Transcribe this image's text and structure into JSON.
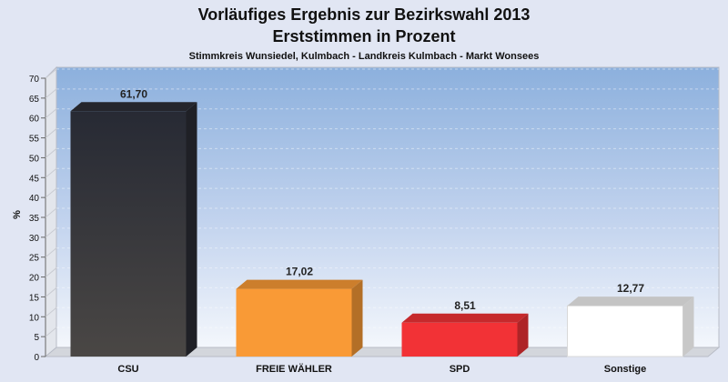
{
  "chart_data": {
    "type": "bar",
    "title": "Vorläufiges Ergebnis zur Bezirkswahl 2013",
    "title_line2": "Erststimmen in Prozent",
    "subtitle": "Stimmkreis Wunsiedel, Kulmbach - Landkreis Kulmbach - Markt Wonsees",
    "ylabel": "%",
    "ylim": [
      0,
      70
    ],
    "yticks": [
      0,
      5,
      10,
      15,
      20,
      25,
      30,
      35,
      40,
      45,
      50,
      55,
      60,
      65,
      70
    ],
    "categories": [
      "CSU",
      "FREIE WÄHLER",
      "SPD",
      "Sonstige"
    ],
    "values": [
      61.7,
      17.02,
      8.51,
      12.77
    ],
    "value_labels": [
      "61,70",
      "17,02",
      "8,51",
      "12,77"
    ],
    "colors": [
      "#2b2d35",
      "#f99a36",
      "#f23236",
      "#ffffff"
    ],
    "grid": true,
    "style": "3d"
  }
}
